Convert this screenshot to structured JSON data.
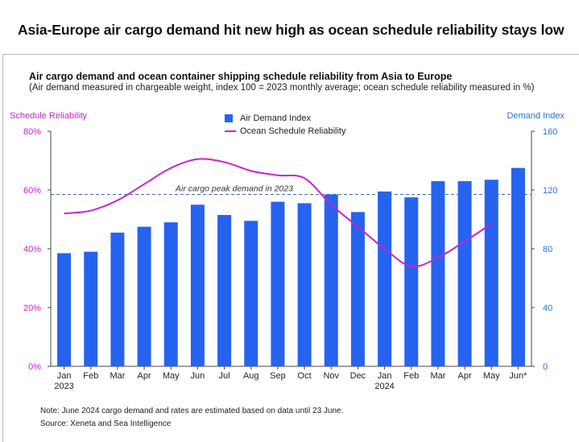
{
  "headline": "Asia-Europe air cargo demand hit new high as ocean schedule reliability stays low",
  "chart_data": {
    "type": "bar",
    "title": "Air cargo demand and ocean container shipping schedule reliability from Asia to Europe",
    "subtitle": "(Air demand measured in chargeable weight, index 100 = 2023 monthly average; ocean schedule reliability measured in %)",
    "left_axis": {
      "label": "Schedule Reliability",
      "ticks": [
        "0%",
        "20%",
        "40%",
        "60%",
        "80%"
      ],
      "range": [
        0,
        80
      ]
    },
    "right_axis": {
      "label": "Demand Index",
      "ticks": [
        "0",
        "40",
        "80",
        "120",
        "160"
      ],
      "range": [
        0,
        160
      ]
    },
    "categories": [
      "Jan",
      "Feb",
      "Mar",
      "Apr",
      "May",
      "Jun",
      "Jul",
      "Aug",
      "Sep",
      "Oct",
      "Nov",
      "Dec",
      "Jan",
      "Feb",
      "Mar",
      "Apr",
      "May",
      "Jun*"
    ],
    "year_labels": [
      {
        "index": 0,
        "label": "2023"
      },
      {
        "index": 12,
        "label": "2024"
      }
    ],
    "legend": [
      "Air Demand Index",
      "Ocean Schedule Reliability"
    ],
    "legend_position": "top-center",
    "series": [
      {
        "name": "Air Demand Index",
        "type": "bar",
        "axis": "right",
        "color": "#2563f0",
        "values": [
          77,
          78,
          91,
          95,
          98,
          110,
          103,
          99,
          112,
          111,
          117,
          105,
          119,
          115,
          126,
          126,
          127,
          135
        ]
      },
      {
        "name": "Ocean Schedule Reliability",
        "type": "line",
        "axis": "left",
        "color": "#cc22cc",
        "values": [
          52,
          53,
          56.5,
          62,
          67.5,
          70.5,
          69.5,
          66.5,
          65,
          64,
          55,
          47.5,
          40,
          34,
          37,
          42.5,
          48.5,
          null
        ]
      }
    ],
    "reference_line": {
      "label": "Air cargo peak demand in 2023",
      "value": 117,
      "axis": "right",
      "style": "dashed"
    },
    "grid": false
  },
  "footer": {
    "note": "Note: June 2024 cargo demand and rates are estimated based on data until 23 June.",
    "source": "Source: Xeneta and Sea Intelligence"
  }
}
